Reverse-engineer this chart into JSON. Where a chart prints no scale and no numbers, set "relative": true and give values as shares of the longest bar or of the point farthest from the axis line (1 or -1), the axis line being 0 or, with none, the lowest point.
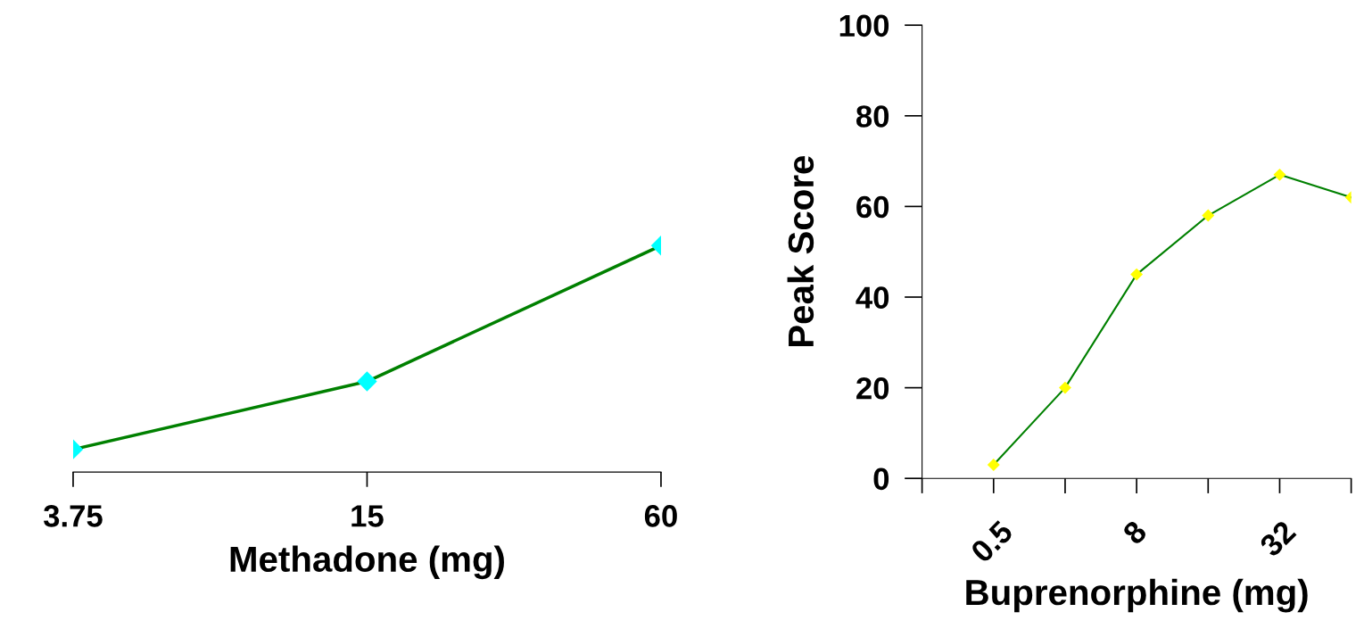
{
  "chart_data": [
    {
      "type": "line",
      "xlabel": "Methadone (mg)",
      "categories": [
        "3.75",
        "15",
        "60"
      ],
      "relative": true,
      "marker": "diamond",
      "grid": false,
      "legend": false,
      "series": [
        {
          "color": "#008000",
          "colors": [
            "#00ffff",
            "#00ffff",
            "#00ffff"
          ],
          "values": [
            0.1,
            0.4,
            1.0
          ]
        }
      ]
    },
    {
      "type": "line",
      "xlabel": "Buprenorphine (mg)",
      "ylabel": "Peak Score",
      "categories": [
        null,
        "0.5",
        null,
        "8",
        null,
        "32",
        null
      ],
      "ylim": [
        0,
        100
      ],
      "yticks": [
        0,
        20,
        40,
        60,
        80,
        100
      ],
      "marker": "diamond",
      "grid": false,
      "legend": false,
      "series": [
        {
          "color": "#008000",
          "colors": [
            "#ffff00",
            "#ffff00",
            "#ffff00",
            "#ffff00",
            "#ffff00",
            "#ffff00",
            "#ffff00"
          ],
          "values": [
            null,
            3,
            20,
            45,
            58,
            67,
            62
          ]
        }
      ]
    }
  ]
}
